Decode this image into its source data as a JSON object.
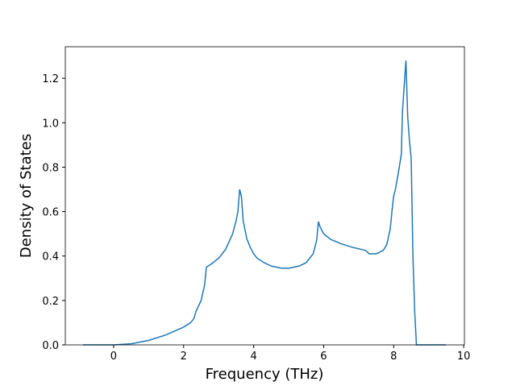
{
  "chart_data": {
    "type": "line",
    "xlabel": "Frequency (THz)",
    "ylabel": "Density of States",
    "x": [
      -0.875,
      0,
      0.5,
      1,
      1.5,
      2,
      2.2,
      2.3,
      2.35,
      2.5,
      2.6,
      2.65,
      2.8,
      3,
      3.2,
      3.4,
      3.5,
      3.55,
      3.6,
      3.65,
      3.7,
      3.8,
      3.9,
      4,
      4.1,
      4.3,
      4.5,
      4.8,
      5,
      5.3,
      5.5,
      5.7,
      5.8,
      5.85,
      5.9,
      6,
      6.2,
      6.5,
      6.8,
      7.2,
      7.3,
      7.5,
      7.7,
      7.8,
      7.9,
      7.95,
      8.0,
      8.05,
      8.15,
      8.22,
      8.25,
      8.35,
      8.4,
      8.45,
      8.5,
      8.55,
      8.6,
      8.65,
      9.49
    ],
    "series": [
      {
        "color": "#1f77b4",
        "values": [
          0,
          0,
          0.005,
          0.02,
          0.045,
          0.08,
          0.1,
          0.12,
          0.15,
          0.2,
          0.27,
          0.35,
          0.365,
          0.39,
          0.43,
          0.5,
          0.56,
          0.6,
          0.7,
          0.67,
          0.56,
          0.48,
          0.44,
          0.41,
          0.39,
          0.37,
          0.355,
          0.345,
          0.345,
          0.355,
          0.37,
          0.41,
          0.47,
          0.555,
          0.53,
          0.5,
          0.475,
          0.455,
          0.44,
          0.425,
          0.41,
          0.41,
          0.425,
          0.45,
          0.52,
          0.6,
          0.67,
          0.7,
          0.79,
          0.86,
          1.05,
          1.28,
          1.03,
          0.92,
          0.84,
          0.4,
          0.15,
          0,
          0
        ]
      }
    ],
    "xlim": [
      -1.38,
      10.02
    ],
    "ylim": [
      0,
      1.342
    ],
    "xticks": [
      0,
      2,
      4,
      6,
      8,
      10
    ],
    "yticks": [
      {
        "value": 0,
        "label": "0.0"
      },
      {
        "value": 0.2,
        "label": "0.2"
      },
      {
        "value": 0.4,
        "label": "0.4"
      },
      {
        "value": 0.6,
        "label": "0.6"
      },
      {
        "value": 0.8,
        "label": "0.8"
      },
      {
        "value": 1,
        "label": "1.0"
      },
      {
        "value": 1.2,
        "label": "1.2"
      }
    ]
  }
}
